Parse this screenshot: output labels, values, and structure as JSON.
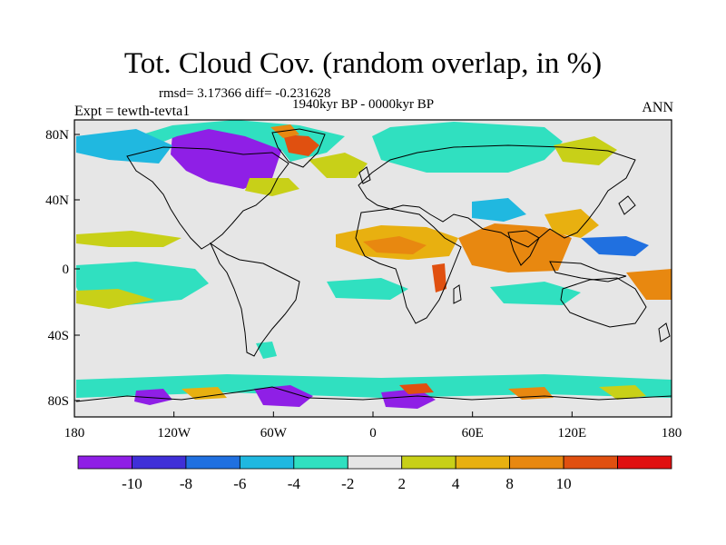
{
  "title": "Tot. Cloud Cov. (random overlap, in %)",
  "stats": "rmsd= 3.17366  diff= -0.231628",
  "period": "1940kyr BP - 0000kyr BP",
  "expt": "Expt = tewth-tevta1",
  "season": "ANN",
  "map": {
    "projection": "cylindrical equidistant",
    "lon_range": [
      -180,
      180
    ],
    "lat_range": [
      -90,
      90
    ],
    "background_color": "#e6e6e6",
    "coastline_color": "#000000",
    "lon_ticks": [
      "180",
      "120W",
      "60W",
      "0",
      "60E",
      "120E",
      "180"
    ],
    "lat_ticks": [
      "80N",
      "40N",
      "0",
      "40S",
      "80S"
    ]
  },
  "colorbar": {
    "labels": [
      "-10",
      "-8",
      "-6",
      "-4",
      "-2",
      "2",
      "4",
      "8",
      "10"
    ],
    "colors": [
      "#8f1fe6",
      "#3f2fd8",
      "#2070e0",
      "#20b8e0",
      "#30e0c0",
      "#e6e6e6",
      "#c8d018",
      "#e8b010",
      "#e88810",
      "#e05010",
      "#e01010"
    ]
  },
  "anomaly_colors": {
    "strong_decrease": "#8f1fe6",
    "decrease": "#3f2fd8",
    "moderate_decrease": "#2070e0",
    "weak_decrease": "#20b8e0",
    "slight_decrease": "#30e0c0",
    "slight_increase": "#c8d018",
    "weak_increase": "#e8b010",
    "moderate_increase": "#e88810",
    "strong_increase": "#e05010",
    "max_increase": "#e01010"
  }
}
